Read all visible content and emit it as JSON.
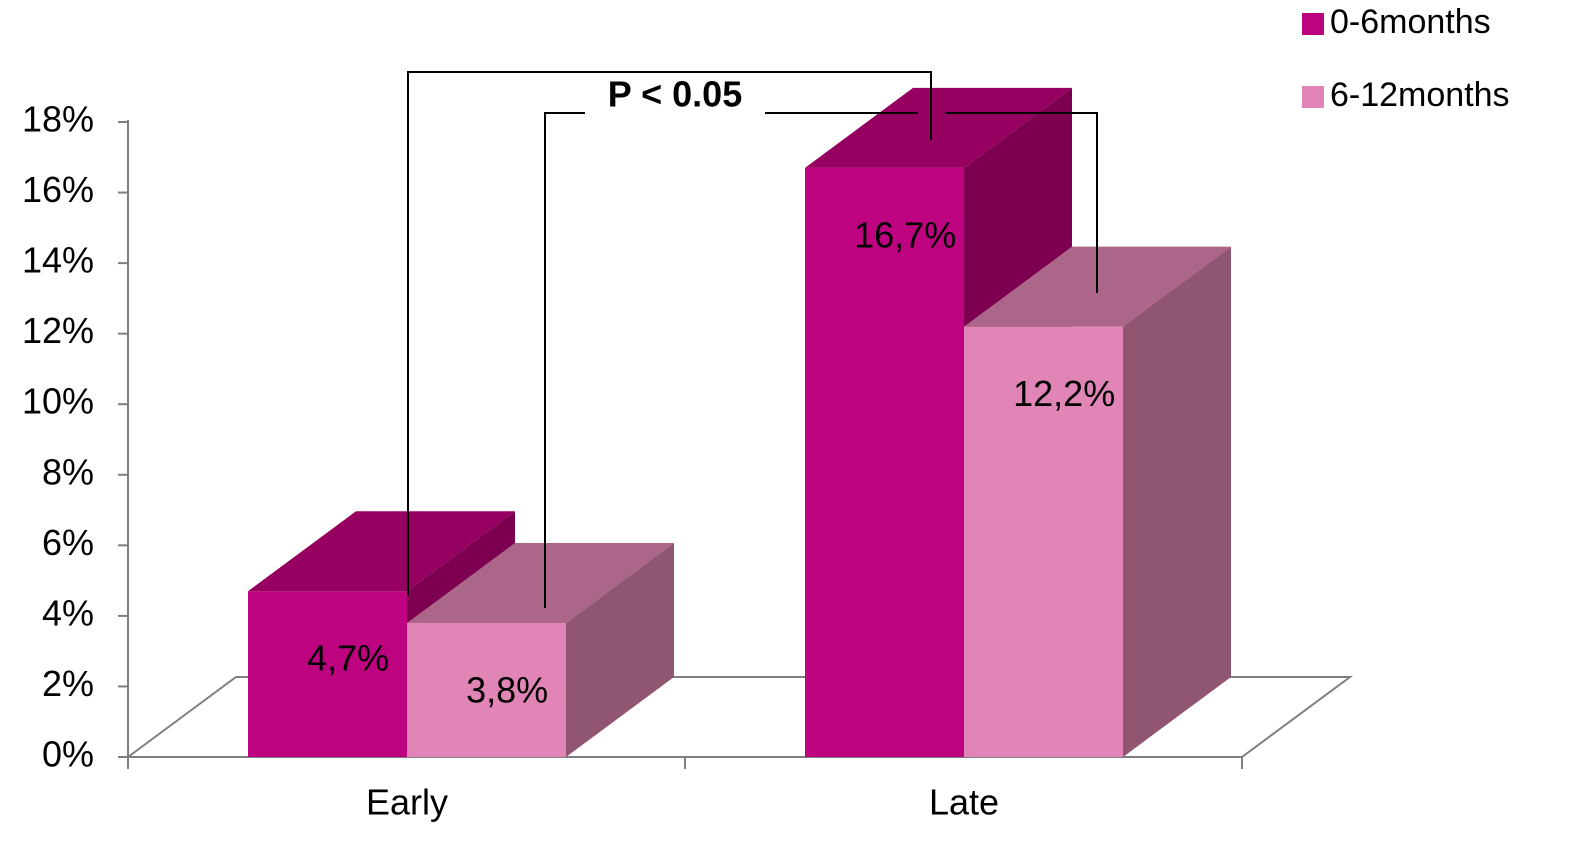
{
  "chart_data": {
    "type": "bar3d",
    "categories": [
      "Early",
      "Late"
    ],
    "series": [
      {
        "name": "0-6months",
        "color": "#be0380",
        "top_color": "#960060",
        "side_color": "#7d0050",
        "values": [
          4.7,
          16.7
        ],
        "value_labels": [
          "4,7%",
          "16,7%"
        ]
      },
      {
        "name": "6-12months",
        "color": "#e085b5",
        "top_color": "#ab6689",
        "side_color": "#8f5571",
        "values": [
          3.8,
          12.2
        ],
        "value_labels": [
          "3,8%",
          "12,2%"
        ]
      }
    ],
    "ylim": [
      0,
      18
    ],
    "yticks": [
      {
        "value": 0,
        "label": "0%"
      },
      {
        "value": 2,
        "label": "2%"
      },
      {
        "value": 4,
        "label": "4%"
      },
      {
        "value": 6,
        "label": "6%"
      },
      {
        "value": 8,
        "label": "8%"
      },
      {
        "value": 10,
        "label": "10%"
      },
      {
        "value": 12,
        "label": "12%"
      },
      {
        "value": 14,
        "label": "14%"
      },
      {
        "value": 16,
        "label": "16%"
      },
      {
        "value": 18,
        "label": "18%"
      }
    ],
    "annotation": "P < 0.05",
    "grid": false,
    "legend": "top-right"
  }
}
